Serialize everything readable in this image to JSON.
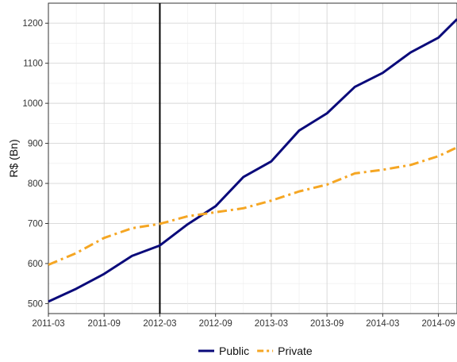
{
  "chart_data": {
    "type": "line",
    "title": "",
    "xlabel": "",
    "ylabel": "R$ (Bn)",
    "xlim": [
      "2011-03",
      "2014-11"
    ],
    "ylim": [
      475,
      1250
    ],
    "y_ticks": [
      500,
      600,
      700,
      800,
      900,
      1000,
      1100,
      1200
    ],
    "x_ticks": [
      "2011-03",
      "2011-09",
      "2012-03",
      "2012-09",
      "2013-03",
      "2013-09",
      "2014-03",
      "2014-09"
    ],
    "grid": true,
    "legend": "bottom",
    "x": [
      "2011-03",
      "2011-06",
      "2011-09",
      "2011-12",
      "2012-03",
      "2012-06",
      "2012-09",
      "2012-12",
      "2013-03",
      "2013-06",
      "2013-09",
      "2013-12",
      "2014-03",
      "2014-06",
      "2014-09",
      "2014-11"
    ],
    "series": [
      {
        "name": "Public",
        "color": "#0a0a7a",
        "dash": "solid",
        "values": [
          505,
          537,
          574,
          619,
          645,
          698,
          743,
          816,
          855,
          932,
          975,
          1041,
          1076,
          1127,
          1164,
          1210
        ]
      },
      {
        "name": "Private",
        "color": "#f5a623",
        "dash": "dotdash",
        "values": [
          597,
          626,
          664,
          688,
          699,
          718,
          728,
          738,
          757,
          780,
          797,
          825,
          834,
          846,
          868,
          890
        ]
      }
    ],
    "annotations": [
      {
        "type": "vline",
        "x": "2012-03",
        "color": "#000000"
      }
    ]
  }
}
